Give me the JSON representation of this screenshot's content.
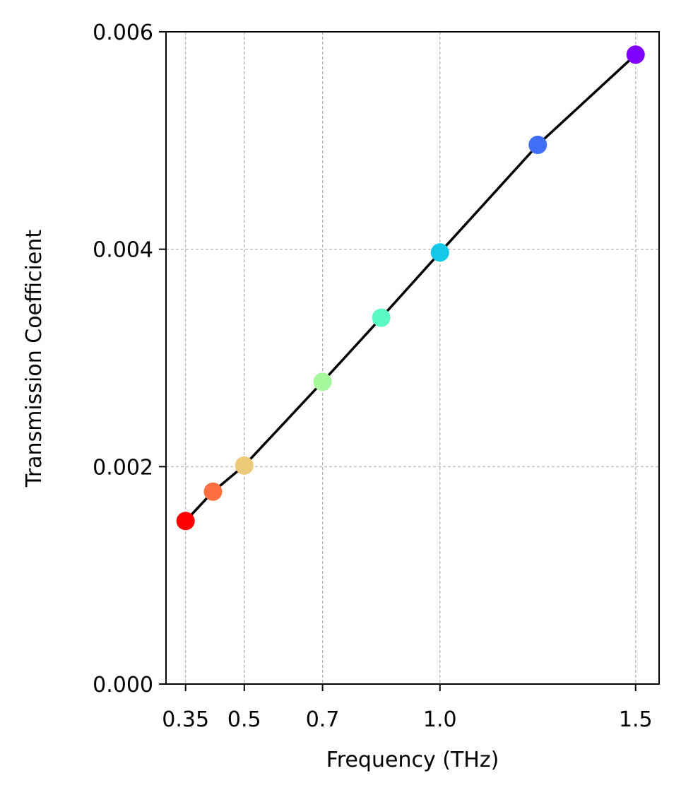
{
  "chart_data": {
    "type": "line",
    "xlabel": "Frequency (THz)",
    "ylabel": "Transmission Coefficient",
    "xlim": [
      0.3,
      1.56
    ],
    "ylim": [
      0,
      0.006
    ],
    "x_ticks": [
      0.35,
      0.5,
      0.7,
      1.0,
      1.5
    ],
    "x_tick_labels": [
      "0.35",
      "0.5",
      "0.7",
      "1.0",
      "1.5"
    ],
    "y_ticks": [
      0,
      0.002,
      0.004,
      0.006
    ],
    "y_tick_labels": [
      "0.000",
      "0.002",
      "0.004",
      "0.006"
    ],
    "grid": true,
    "line_color": "#000000",
    "series": [
      {
        "x": [
          0.35,
          0.42,
          0.5,
          0.7,
          0.85,
          1.0,
          1.25,
          1.5
        ],
        "y": [
          0.0015,
          0.00177,
          0.00201,
          0.00278,
          0.00337,
          0.00397,
          0.00496,
          0.00579
        ],
        "marker_colors": [
          "#ff0000",
          "#ff6e3e",
          "#edc97a",
          "#a5f99b",
          "#5bfac5",
          "#13c9e7",
          "#3f6ff4",
          "#8000ff"
        ]
      }
    ]
  }
}
